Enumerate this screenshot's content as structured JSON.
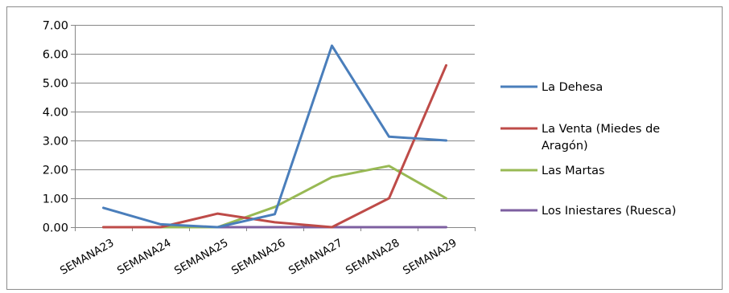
{
  "chart_data": {
    "type": "line",
    "title": "",
    "xlabel": "",
    "ylabel": "",
    "categories": [
      "SEMANA23",
      "SEMANA24",
      "SEMANA25",
      "SEMANA26",
      "SEMANA27",
      "SEMANA28",
      "SEMANA29"
    ],
    "ylim": [
      0,
      7
    ],
    "yticks": [
      "0.00",
      "1.00",
      "2.00",
      "3.00",
      "4.00",
      "5.00",
      "6.00",
      "7.00"
    ],
    "grid": true,
    "legend_position": "right",
    "series": [
      {
        "name": "La Dehesa",
        "color": "#4a7ebb",
        "values": [
          0.67,
          0.1,
          0.0,
          0.45,
          6.28,
          3.13,
          3.0
        ]
      },
      {
        "name": "La Venta (Miedes de Aragón)",
        "color": "#be4b48",
        "values": [
          0.0,
          0.0,
          0.47,
          0.17,
          0.0,
          1.0,
          5.6
        ]
      },
      {
        "name": "Las Martas",
        "color": "#98b954",
        "values": [
          0.0,
          0.0,
          0.0,
          0.7,
          1.73,
          2.12,
          1.0
        ]
      },
      {
        "name": "Los Iniestares (Ruesca)",
        "color": "#7d5fa0",
        "values": [
          0.0,
          0.0,
          0.0,
          0.0,
          0.0,
          0.0,
          0.0
        ]
      }
    ]
  }
}
